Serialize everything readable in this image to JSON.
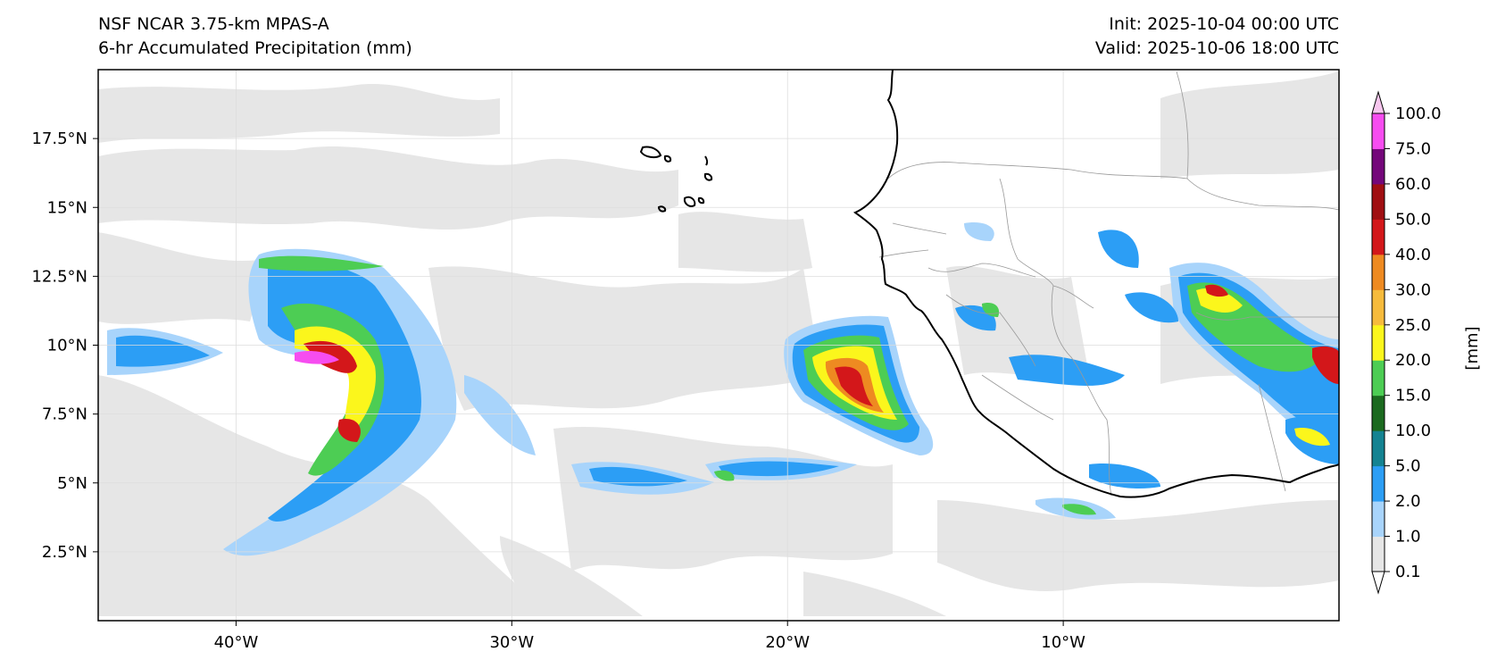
{
  "header": {
    "left_line1": "NSF NCAR 3.75-km MPAS-A",
    "left_line2": "6-hr Accumulated Precipitation (mm)",
    "right_line1": "Init: 2025-10-04 00:00 UTC",
    "right_line2": "Valid: 2025-10-06 18:00 UTC"
  },
  "map": {
    "lon_range": [
      -45,
      0
    ],
    "lat_range": [
      0,
      20
    ],
    "lat_ticks": [
      {
        "value": 17.5,
        "label": "17.5°N"
      },
      {
        "value": 15,
        "label": "15°N"
      },
      {
        "value": 12.5,
        "label": "12.5°N"
      },
      {
        "value": 10,
        "label": "10°N"
      },
      {
        "value": 7.5,
        "label": "7.5°N"
      },
      {
        "value": 5,
        "label": "5°N"
      },
      {
        "value": 2.5,
        "label": "2.5°N"
      }
    ],
    "lon_ticks": [
      {
        "value": -40,
        "label": "40°W"
      },
      {
        "value": -30,
        "label": "30°W"
      },
      {
        "value": -20,
        "label": "20°W"
      },
      {
        "value": -10,
        "label": "10°W"
      }
    ],
    "gridlines": true
  },
  "colorbar": {
    "label": "[mm]",
    "levels": [
      "0.1",
      "1.0",
      "2.0",
      "5.0",
      "10.0",
      "15.0",
      "20.0",
      "25.0",
      "30.0",
      "40.0",
      "50.0",
      "60.0",
      "75.0",
      "100.0"
    ],
    "colors": [
      "#e6e6e6",
      "#a8d4fb",
      "#2c9ef5",
      "#148392",
      "#1b6a1f",
      "#4dcd54",
      "#fbf61c",
      "#f6bb3c",
      "#ee8a21",
      "#d3171a",
      "#a00f12",
      "#74077a",
      "#f64df0"
    ],
    "under_color": "#ffffff",
    "over_color": "#f7c6ee"
  },
  "colors": {
    "coast": "#000000",
    "borders": "#999999",
    "grid": "#dddddd"
  }
}
